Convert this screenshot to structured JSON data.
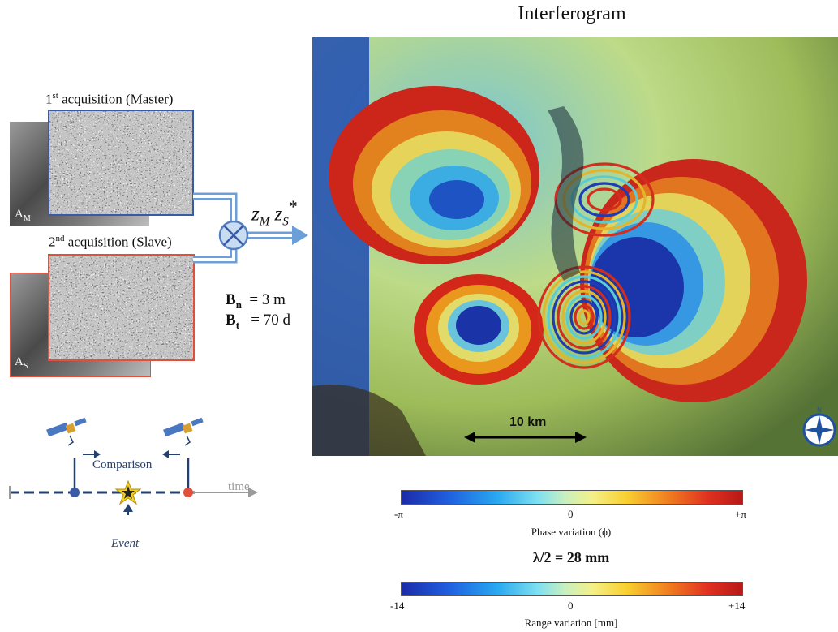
{
  "title": "Interferogram",
  "master": {
    "label_prefix": "1",
    "label_sup": "st",
    "label_rest": " acquisition (Master)",
    "amp_label": "A",
    "amp_sub": "M"
  },
  "slave": {
    "label_prefix": "2",
    "label_sup": "nd",
    "label_rest": " acquisition (Slave)",
    "amp_label": "A",
    "amp_sub": "S"
  },
  "product": {
    "z1": "z",
    "z1_sub": "M",
    "z2": "z",
    "z2_sub": "S",
    "conj": "*"
  },
  "baselines": {
    "bn_sym": "B",
    "bn_sub": "n",
    "bn_val": "= 3 m",
    "bt_sym": "B",
    "bt_sub": "t",
    "bt_val": "= 70 d"
  },
  "scale_bar": "10 km",
  "timeline": {
    "comparison": "Comparison",
    "time": "time",
    "event": "Event"
  },
  "phase_bar": {
    "min": "-π",
    "mid": "0",
    "max": "+π",
    "title": "Phase variation (ϕ)"
  },
  "lambda": "λ/2  = 28 mm",
  "range_bar": {
    "min": "-14",
    "mid": "0",
    "max": "+14",
    "title": "Range variation [mm]"
  },
  "colors": {
    "master_frame": "#3a5aa8",
    "slave_frame": "#e0503a",
    "arrow": "#6b9fd8",
    "timeline_line": "#24406e",
    "event_star": "#f0d020"
  }
}
